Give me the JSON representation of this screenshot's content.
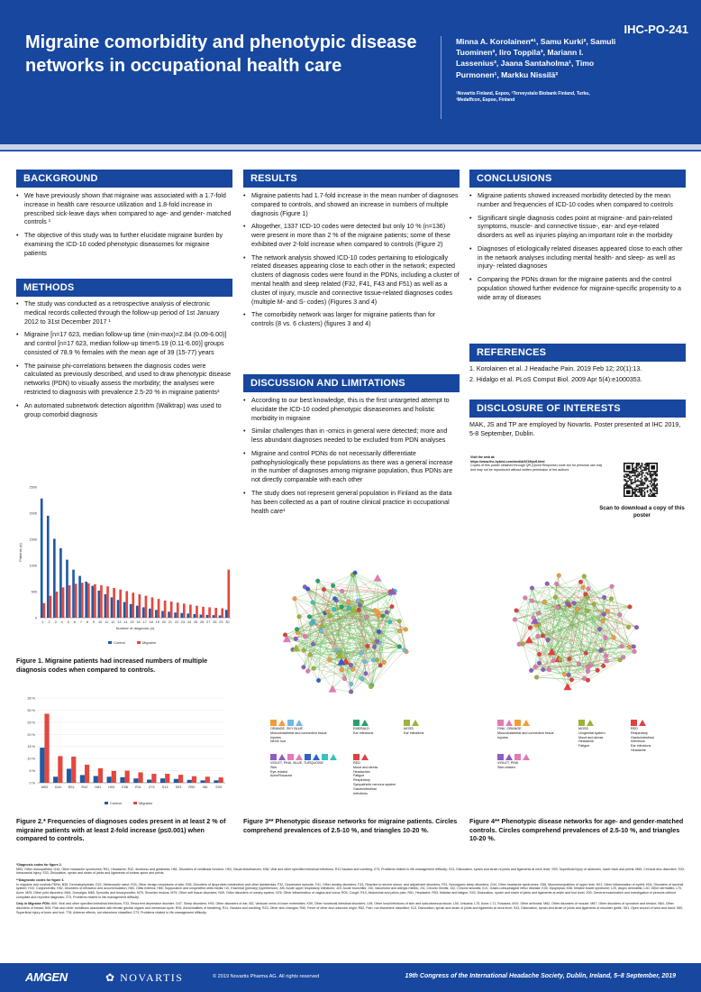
{
  "header": {
    "poster_id": "IHC-PO-241",
    "title": "Migraine comorbidity and phenotypic disease networks in occupational health care",
    "authors": "Minna A. Korolainen*¹, Samu Kurki², Samuli Tuominen³, Iiro Toppila³, Mariann I. Lassenius³, Jaana Santaholma¹, Timo Purmonen¹, Markku Nissilä²",
    "affiliations": "¹Novartis Finland, Espoo, ²Terveystalo Biobank Finland, Turku, ³Medaffcon, Espoo, Finland"
  },
  "background": {
    "heading": "BACKGROUND",
    "items": [
      "We have previously shown that migraine was associated with a 1.7-fold increase in health care resource utilization and 1.8-fold increase in prescribed sick-leave days when compared to age- and gender- matched controls ¹",
      "The objective of this study was to further elucidate migraine burden by examining the ICD-10 coded phenotypic diseasomes for migraine patients"
    ]
  },
  "methods": {
    "heading": "METHODS",
    "items": [
      "The study was conducted as a retrospective analysis of electronic medical records collected through the follow-up period of 1st January 2012 to 31st December 2017 ¹",
      "Migraine [n=17 623, median follow-up time (min-max)=2.84 (0.09-6.00)] and control [n=17 623, median follow-up time=5.19 (0.11-6.00)] groups consisted of 78.9 % females with the mean age of 39 (15-77) years",
      "The pairwise phi-correlations between the diagnosis codes were calculated as previously described, and used to draw phenotypic disease networks (PDN) to visually assess the morbidity; the analyses were restricted to diagnosis with prevalence 2.5-20 % in migraine patients²",
      "An automated subnetwork detection algorithm (Walktrap) was used to group comorbid diagnosis"
    ]
  },
  "results": {
    "heading": "RESULTS",
    "items": [
      "Migraine patients had 1.7-fold increase in the mean number of diagnoses compared to controls, and showed an increase in numbers of multiple diagnosis (Figure 1)",
      "Altogether, 1337 ICD-10 codes were detected but only 10 % (n=136) were present in more than 2 % of the migraine patients; some of these exhibited over 2-fold increase when compared to controls (Figure 2)",
      "The network analysis showed ICD-10 codes pertaining to etiologically related diseases appearing close to each other in the network; expected clusters of diagnosis codes were found in the PDNs, including a cluster of mental health and sleep related (F32, F41, F43 and F51) as well as a cluster of injury, muscle and connective tissue-related diagnoses codes (multiple M- and S- codes) (Figures 3 and 4)",
      "The comorbidity network was larger for migraine patients than for controls (8 vs. 6 clusters) (figures 3 and 4)"
    ]
  },
  "discussion": {
    "heading": "DISCUSSION AND LIMITATIONS",
    "items": [
      "According to our best knowledge, this is the first untargeted attempt to elucidate the ICD-10 coded phenotypic diseaseomes and holistic morbidity in migraine",
      "Similar challenges than in -omics in general were detected; more and less abundant diagnoses needed to be excluded from PDN analyses",
      "Migraine and control PDNs do not necessarily differentiate pathophysiologically these populations as there was a general increase in the number of diagnoses among migraine population, thus PDNs are not directly comparable with each other",
      "The study does not represent general population in Finland as the data has been collected as a part of routine clinical practice in occupational health care¹"
    ]
  },
  "conclusions": {
    "heading": "CONCLUSIONS",
    "items": [
      "Migraine patients showed increased morbidity detected by the mean number and frequencies of ICD-10 codes when compared to controls",
      "Significant single diagnosis codes point at migraine- and pain-related symptoms, muscle- and connective tissue-, ear- and eye-related disorders as well as injuries playing an important role in the morbidity",
      "Diagnoses of etiologically related diseases appeared close to each other in the network analyses including mental health- and sleep- as well as injury- related diagnoses",
      "Comparing the PDNs drawn for the migraine patients and the control population showed further evidence for migraine-specific propensity to a wide array of diseases"
    ]
  },
  "references": {
    "heading": "REFERENCES",
    "items": [
      "1. Korolainen et al. J Headache Pain. 2019 Feb 12; 20(1):13.",
      "2. Hidalgo et al. PLoS Comput Biol. 2009 Apr 5(4):e1000353."
    ]
  },
  "disclosure": {
    "heading": "DISCLOSURE OF INTERESTS",
    "text": "MAK, JS and TP are employed by Novartis. Poster presented at IHC 2019, 5-8 September, Dublin."
  },
  "qr": {
    "visit_label": "Visit the web at:",
    "visit_url": "https://www.ihc-hybrid.com/media/2019/pdf.html",
    "visit_note": "Copies of this poster obtained through QR (Quick Response) code are for personal use only and may not be reproduced without written permission of the authors",
    "scan_text": "Scan to download a copy of this poster"
  },
  "figure1": {
    "caption": "Figure 1. Migraine patients had increased numbers of multiple diagnosis codes when compared to controls.",
    "colors": {
      "control": "#1f5aa6",
      "migraine": "#e4473c"
    },
    "chart_data": {
      "type": "bar",
      "xlabel": "Number of diagnosis (n)",
      "ylabel": "Patients (n)",
      "ylim": [
        0,
        2500
      ],
      "yticks": [
        0,
        500,
        1000,
        1500,
        2000,
        2500
      ],
      "categories": [
        "1",
        "2",
        "3",
        "4",
        "5",
        "6",
        "7",
        "8",
        "9",
        "10",
        "11",
        "12",
        "13",
        "14",
        "15",
        "16",
        "17",
        "18",
        "19",
        "20",
        "21",
        "22",
        "23",
        "24",
        "25",
        "26",
        "27",
        "28",
        "29",
        "30"
      ],
      "series": [
        {
          "name": "Control",
          "values": [
            2280,
            1950,
            1510,
            1330,
            1110,
            920,
            800,
            690,
            610,
            520,
            450,
            390,
            340,
            300,
            260,
            230,
            200,
            175,
            150,
            130,
            115,
            100,
            90,
            80,
            70,
            60,
            55,
            50,
            45,
            150
          ]
        },
        {
          "name": "Migraine",
          "values": [
            280,
            420,
            500,
            580,
            620,
            650,
            670,
            660,
            640,
            620,
            600,
            570,
            540,
            510,
            480,
            450,
            420,
            390,
            360,
            330,
            310,
            290,
            270,
            250,
            230,
            210,
            200,
            190,
            180,
            920
          ]
        }
      ],
      "legend": "bottom"
    }
  },
  "figure2": {
    "caption": "Figure 2.* Frequencies of diagnoses codes present in at least 2 % of migraine patients with at least 2-fold increase (p≤0.001) when compared to controls.",
    "colors": {
      "control": "#1f5aa6",
      "migraine": "#e4473c"
    },
    "chart_data": {
      "type": "bar",
      "ylim": [
        0,
        35
      ],
      "yticks": [
        0,
        5,
        10,
        15,
        20,
        25,
        30,
        35
      ],
      "ytick_suffix": " %",
      "categories": [
        "M53",
        "G44",
        "R51",
        "R42",
        "H81",
        "H53",
        "K58",
        "R11",
        "Z73",
        "S13",
        "S93",
        "R50",
        "M6",
        "S33"
      ],
      "series": [
        {
          "name": "Control",
          "values": [
            14.5,
            2.5,
            5.8,
            3.2,
            2.8,
            2.5,
            2.3,
            1.8,
            1.3,
            1.8,
            1.6,
            1.2,
            1.0,
            1.0
          ]
        },
        {
          "name": "Migraine",
          "values": [
            28.5,
            11.0,
            10.8,
            7.5,
            6.0,
            4.9,
            5.0,
            4.3,
            3.7,
            3.7,
            3.3,
            2.7,
            2.5,
            2.2
          ]
        }
      ],
      "legend": "bottom"
    }
  },
  "figure3": {
    "caption": "Figure 3** Phenotypic disease networks for migraine patients. Circles comprehend prevalences of 2.5-10 %, and triangles 10-20 %.",
    "legend_groups": [
      {
        "label": "ORANGE, SKY BLUE",
        "colors": [
          "#f29b3b",
          "#73b7e6"
        ],
        "lines": [
          "Musculoskeletal and connective tissue",
          "Injuries",
          "Nerve root"
        ]
      },
      {
        "label": "EMERALD",
        "colors": [
          "#29a06a"
        ],
        "lines": [
          "Ear infections"
        ]
      },
      {
        "label": "MOSS",
        "colors": [
          "#9ab43a"
        ],
        "lines": [
          "Ear infections"
        ]
      },
      {
        "label": "VIOLET, PINK, BLUE, TURQUOISE",
        "colors": [
          "#8e5cc2",
          "#e07bb4",
          "#2f62c8",
          "#37c2c2"
        ],
        "lines": [
          "Skin",
          "Eye-related",
          "Acne/Rosacea"
        ]
      },
      {
        "label": "RED",
        "colors": [
          "#e04141"
        ],
        "lines": [
          "Mood and stress",
          "Headaches",
          "Fatigue",
          "Respiratory",
          "Sympathetic nervous system",
          "Gastrointestinal",
          "Infections"
        ]
      }
    ]
  },
  "figure4": {
    "caption": "Figure 4** Phenotypic disease networks for age- and gender-matched controls. Circles comprehend prevalences of 2.5-10 %, and triangles 10-20 %.",
    "legend_groups": [
      {
        "label": "PINK, ORANGE",
        "colors": [
          "#e07bb4",
          "#f29b3b"
        ],
        "lines": [
          "Musculoskeletal and connective tissue",
          "Injuries"
        ]
      },
      {
        "label": "MOSS",
        "colors": [
          "#9ab43a"
        ],
        "lines": [
          "Urogenital system",
          "Mood and stress",
          "Headache",
          "Fatigue"
        ]
      },
      {
        "label": "RED",
        "colors": [
          "#e04141"
        ],
        "lines": [
          "Respiratory",
          "Gastrointestinal",
          "Infections",
          "Ear infections",
          "Headache"
        ]
      },
      {
        "label": "VIOLET, PINK",
        "colors": [
          "#8e5cc2",
          "#e07bb4"
        ],
        "lines": [
          "Skin-related"
        ]
      }
    ]
  },
  "footnotes": {
    "fn1_title": "*Diagnosis codes for figure 2.",
    "fn1_text": "M53, Other dorsopathies; G44, Other headache syndromes; R51, Headache; R42, dizziness and giddiness; H81, Disorders of vestibular function; H53, Visual disturbances; K58, Vital and other specified intestinal infections; R11 Nausea and vomiting; Z73, Problems related to life-management difficulty; S13, Dislocation, sprain and strain of joints and ligaments at neck level; S93, Superficial injury of abdomen, lower back and pelvis; M65, Cervical disc disorders; S33, Intracranial injury; S33, Dislocation, sprain and strain of joints and ligaments of lumbar spine and pelvis.",
    "fn2_title": "**Diagnostic codes for figure 3.",
    "fn2_text": "In migraine and controls PDNs: B35, Dermatophytosis; D22, Melanocytic naevi; E03, Other benign neoplasms of skin; E55, Disorders of lipoprotein metabolism and other lipidaemias; F32, Depressive episode; F41, Other anxiety disorders; F43, Reaction to severe stress, and adjustment disorders; F51, Nonorganic sleep disorders; G44, Other headache syndromes; G56, Mononeuropathies of upper limb; H01, Other inflammation of eyelid; H04, Disorders of lacrimal system; H10, Conjunctivitis; H52, Disorders of refraction and accommodation; H60, Otitis externa; H65, Suppurative and unspecified otitis media; I10, Essential (primary) hypertension; J06, Acute upper respiratory infections; J20, Acute bronchitis; J30, Vasomotor and allergic rhinitis; J31, Chronic rhinitis; J32, Chronic sinusitis; K21, Gastro-oesophageal reflux disease; K30, Dyspepsia; K58, Irritable bowel syndrome; L20, Atopic dermatitis; L30, Other dermatitis; L70, Acne; M25, Other joint disorders; M54, Dorsalgia; M65, Synovitis and tenosynovitis; M75, Shoulder lesions; M79, Other soft tissue disorders; N39, Other disorders of urinary system; N76, Other inflammation of vagina and vulva; R05, Cough; R10, Abdominal and pelvic pain; R51, Headache; R53, Malaise and fatigue; S93, Dislocation, sprain and strain of joints and ligaments at ankle and foot level; Z00, General examination and investigation of persons without complaint and reported diagnosis; Z73, Problems related to life-management difficulty.",
    "fn3_title": "Only in Migraine PDN:",
    "fn3_text": "A09, Viral and other specified intestinal infections; F33, Recurrent depressive disorder; G47, Sleep disorders; H93, Other disorders of ear; I83, Varicose veins of lower extremities; K59, Other functional intestinal disorders; L08, Other local infections of skin and subcutaneous tissue; L50, Urticaria; L70, Acne; L71, Rosacea; M19, Other arthrosis; M62, Other disorders of muscle; M67, Other disorders of synovium and tendon; N64, Other disorders of breast; N94, Pain and other conditions associated with female genital organs and menstrual cycle; R06, Abnormalities of breathing; R11, Nausea and vomiting; R23, Other skin changes; R50, Fever of other and unknown origin; R52, Pain, not elsewhere classified; S13, Dislocation, sprain and strain of joints and ligaments at neck level; S43, Dislocation, sprain and strain of joints and ligaments of shoulder girdle; S61, Open wound of wrist and hand; S80, Superficial injury of knee and foot; T78, Adverse effects, not elsewhere classified; Z73, Problems related to life-management difficulty."
  },
  "footer": {
    "amgen": "AMGEN",
    "novartis": "NOVARTIS",
    "copyright": "© 2019 Novartis Pharma AG. All rights reserved",
    "congress": "19th Congress of the International Headache Society, Dublin, Ireland, 5–8 September, 2019"
  }
}
